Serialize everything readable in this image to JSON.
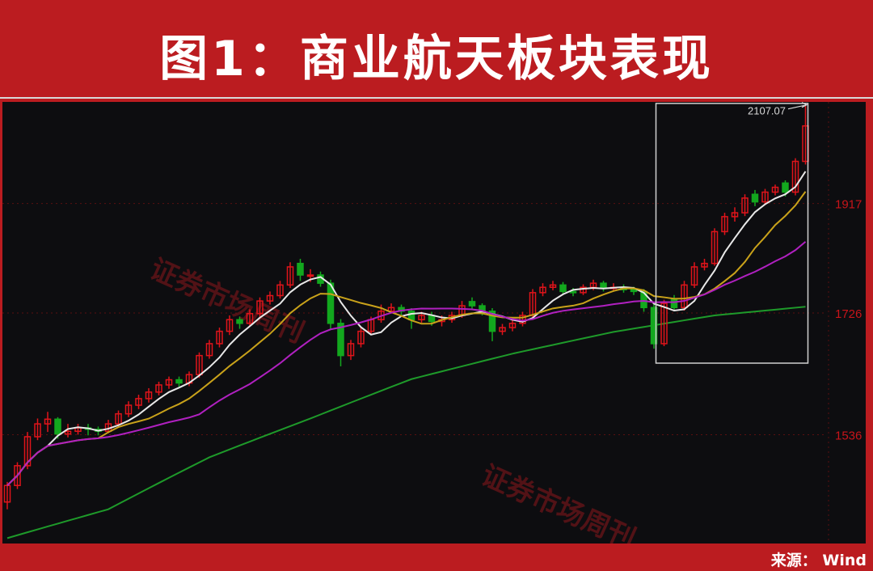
{
  "header": {
    "title": "图1：商业航天板块表现"
  },
  "footer": {
    "source": "来源： Wind"
  },
  "watermark": "证券市场周刊",
  "colors": {
    "up": "#e0141a",
    "down": "#13a81e",
    "ma5": "#e8e8e8",
    "ma10": "#c9a21a",
    "ma20": "#b020c0",
    "ma_long": "#1e9a2a",
    "background": "#0d0d10",
    "axis_label": "#c8141a",
    "header": "#bb1c20"
  },
  "chart_data": {
    "type": "candlestick",
    "title": "",
    "y_scale": "log",
    "y_ticks": [
      1536,
      1726,
      1917
    ],
    "ylim": [
      1370,
      2130
    ],
    "grid": "dotted horizontal at ticks",
    "annotation": {
      "label": "2107.07",
      "value": 2107.07
    },
    "highlight_box": {
      "from_candle": 65,
      "to_candle": 79,
      "price_range": [
        1645,
        2110
      ]
    },
    "candles": [
      [
        1440,
        1468,
        1430,
        1463
      ],
      [
        1463,
        1496,
        1458,
        1491
      ],
      [
        1491,
        1540,
        1486,
        1533
      ],
      [
        1533,
        1560,
        1528,
        1552
      ],
      [
        1552,
        1570,
        1540,
        1559
      ],
      [
        1559,
        1562,
        1530,
        1537
      ],
      [
        1537,
        1552,
        1532,
        1541
      ],
      [
        1541,
        1552,
        1536,
        1546
      ],
      [
        1546,
        1552,
        1535,
        1544
      ],
      [
        1544,
        1548,
        1535,
        1541
      ],
      [
        1541,
        1558,
        1538,
        1552
      ],
      [
        1552,
        1572,
        1548,
        1567
      ],
      [
        1567,
        1586,
        1562,
        1580
      ],
      [
        1580,
        1596,
        1574,
        1590
      ],
      [
        1590,
        1606,
        1584,
        1600
      ],
      [
        1600,
        1616,
        1595,
        1611
      ],
      [
        1611,
        1624,
        1605,
        1619
      ],
      [
        1619,
        1624,
        1608,
        1614
      ],
      [
        1614,
        1632,
        1609,
        1627
      ],
      [
        1627,
        1662,
        1622,
        1657
      ],
      [
        1657,
        1682,
        1652,
        1676
      ],
      [
        1676,
        1702,
        1670,
        1696
      ],
      [
        1696,
        1722,
        1690,
        1715
      ],
      [
        1715,
        1720,
        1700,
        1709
      ],
      [
        1709,
        1732,
        1704,
        1725
      ],
      [
        1725,
        1752,
        1720,
        1746
      ],
      [
        1746,
        1762,
        1740,
        1755
      ],
      [
        1755,
        1780,
        1750,
        1773
      ],
      [
        1773,
        1812,
        1768,
        1804
      ],
      [
        1810,
        1818,
        1780,
        1790
      ],
      [
        1790,
        1800,
        1778,
        1790
      ],
      [
        1790,
        1796,
        1770,
        1776
      ],
      [
        1776,
        1782,
        1700,
        1709
      ],
      [
        1709,
        1716,
        1640,
        1657
      ],
      [
        1657,
        1682,
        1650,
        1676
      ],
      [
        1676,
        1702,
        1670,
        1696
      ],
      [
        1696,
        1720,
        1690,
        1715
      ],
      [
        1715,
        1740,
        1710,
        1729
      ],
      [
        1729,
        1742,
        1725,
        1735
      ],
      [
        1735,
        1740,
        1722,
        1729
      ],
      [
        1729,
        1734,
        1700,
        1715
      ],
      [
        1715,
        1728,
        1710,
        1722
      ],
      [
        1722,
        1728,
        1705,
        1712
      ],
      [
        1712,
        1722,
        1704,
        1715
      ],
      [
        1715,
        1728,
        1710,
        1722
      ],
      [
        1722,
        1746,
        1718,
        1738
      ],
      [
        1745,
        1752,
        1732,
        1738
      ],
      [
        1738,
        1742,
        1722,
        1729
      ],
      [
        1729,
        1734,
        1680,
        1696
      ],
      [
        1696,
        1708,
        1690,
        1702
      ],
      [
        1702,
        1714,
        1696,
        1709
      ],
      [
        1709,
        1728,
        1704,
        1722
      ],
      [
        1722,
        1766,
        1718,
        1760
      ],
      [
        1760,
        1776,
        1754,
        1769
      ],
      [
        1769,
        1780,
        1764,
        1773
      ],
      [
        1773,
        1778,
        1756,
        1762
      ],
      [
        1762,
        1768,
        1754,
        1760
      ],
      [
        1760,
        1774,
        1756,
        1769
      ],
      [
        1769,
        1782,
        1764,
        1776
      ],
      [
        1776,
        1780,
        1762,
        1768
      ],
      [
        1768,
        1776,
        1762,
        1769
      ],
      [
        1769,
        1774,
        1760,
        1765
      ],
      [
        1765,
        1770,
        1756,
        1762
      ],
      [
        1762,
        1766,
        1728,
        1735
      ],
      [
        1735,
        1740,
        1668,
        1676
      ],
      [
        1676,
        1748,
        1672,
        1742
      ],
      [
        1748,
        1756,
        1730,
        1735
      ],
      [
        1735,
        1780,
        1730,
        1773
      ],
      [
        1773,
        1812,
        1768,
        1804
      ],
      [
        1804,
        1818,
        1798,
        1810
      ],
      [
        1810,
        1872,
        1806,
        1866
      ],
      [
        1866,
        1900,
        1860,
        1893
      ],
      [
        1893,
        1910,
        1884,
        1900
      ],
      [
        1900,
        1934,
        1894,
        1927
      ],
      [
        1934,
        1942,
        1912,
        1920
      ],
      [
        1920,
        1944,
        1914,
        1938
      ],
      [
        1938,
        1952,
        1932,
        1947
      ],
      [
        1955,
        1960,
        1930,
        1938
      ],
      [
        1938,
        2002,
        1932,
        1996
      ],
      [
        1996,
        2107.07,
        1990,
        2065
      ]
    ],
    "series": [
      {
        "type": "moving_average",
        "window": 5
      },
      {
        "type": "moving_average",
        "window": 10
      },
      {
        "type": "moving_average",
        "window": 20
      },
      {
        "type": "long_moving_average",
        "values_at_every_10th_candle": [
          1391,
          1430,
          1503,
          1560,
          1620,
          1660,
          1695,
          1722,
          1738,
          1797
        ]
      }
    ]
  }
}
